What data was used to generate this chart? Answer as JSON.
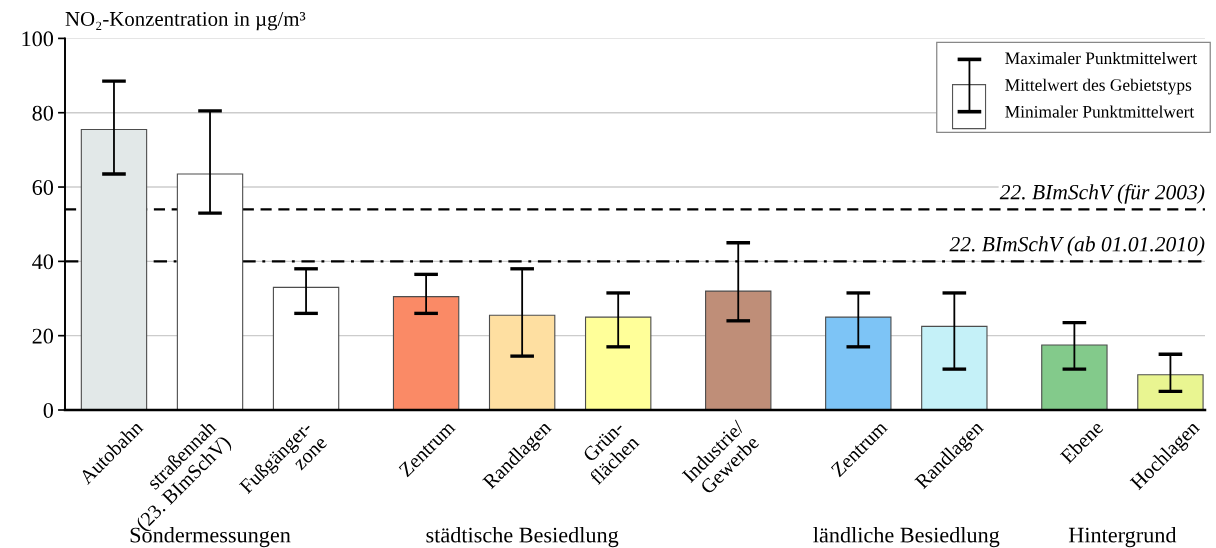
{
  "chart_data": {
    "type": "bar",
    "ylabel": "NO₂-Konzentration in µg/m³",
    "categories": [
      "Autobahn",
      "straßennah\n(23. BImSchV)",
      "Fußgänger-\nzone",
      "Zentrum",
      "Randlagen",
      "Grün-\nflächen",
      "Industrie/\nGewerbe",
      "Zentrum",
      "Randlagen",
      "Ebene",
      "Hochlagen"
    ],
    "values": [
      75.5,
      63.5,
      33,
      30.5,
      25.5,
      25,
      32,
      25,
      22.5,
      17.5,
      9.5
    ],
    "colors": [
      "#e2e8e8",
      "#ffffff",
      "#ffffff",
      "#fa8a66",
      "#fedfa1",
      "#ffff99",
      "#bf8e78",
      "#7dc4f6",
      "#c5f1f8",
      "#83ca8b",
      "#e9f591"
    ],
    "errors": [
      [
        63.5,
        88.5
      ],
      [
        53,
        80.5
      ],
      [
        26,
        38
      ],
      [
        26,
        36.5
      ],
      [
        14.5,
        38
      ],
      [
        17,
        31.5
      ],
      [
        24,
        45
      ],
      [
        17,
        31.5
      ],
      [
        11,
        31.5
      ],
      [
        11,
        23.5
      ],
      [
        5,
        15
      ]
    ],
    "ylim": [
      0,
      100
    ],
    "yticks": [
      0,
      20,
      40,
      60,
      80,
      100
    ],
    "grid": "y",
    "ref_lines": [
      {
        "axis": "y",
        "value": 54,
        "label": "22. BImSchV (für 2003)",
        "color": "#000000",
        "line_style": "dashed"
      },
      {
        "axis": "y",
        "value": 40,
        "label": "22. BImSchV (ab 01.01.2010)",
        "color": "#000000",
        "line_style": "dashdot"
      }
    ],
    "legend": "top right",
    "annotations": [
      "Maximaler Punktmittelwert",
      "Mittelwert des Gebietstyps",
      "Minimaler Punktmittelwert",
      "Sondermessungen",
      "städtische Besiedlung",
      "ländliche Besiedlung",
      "Hintergrund"
    ]
  }
}
